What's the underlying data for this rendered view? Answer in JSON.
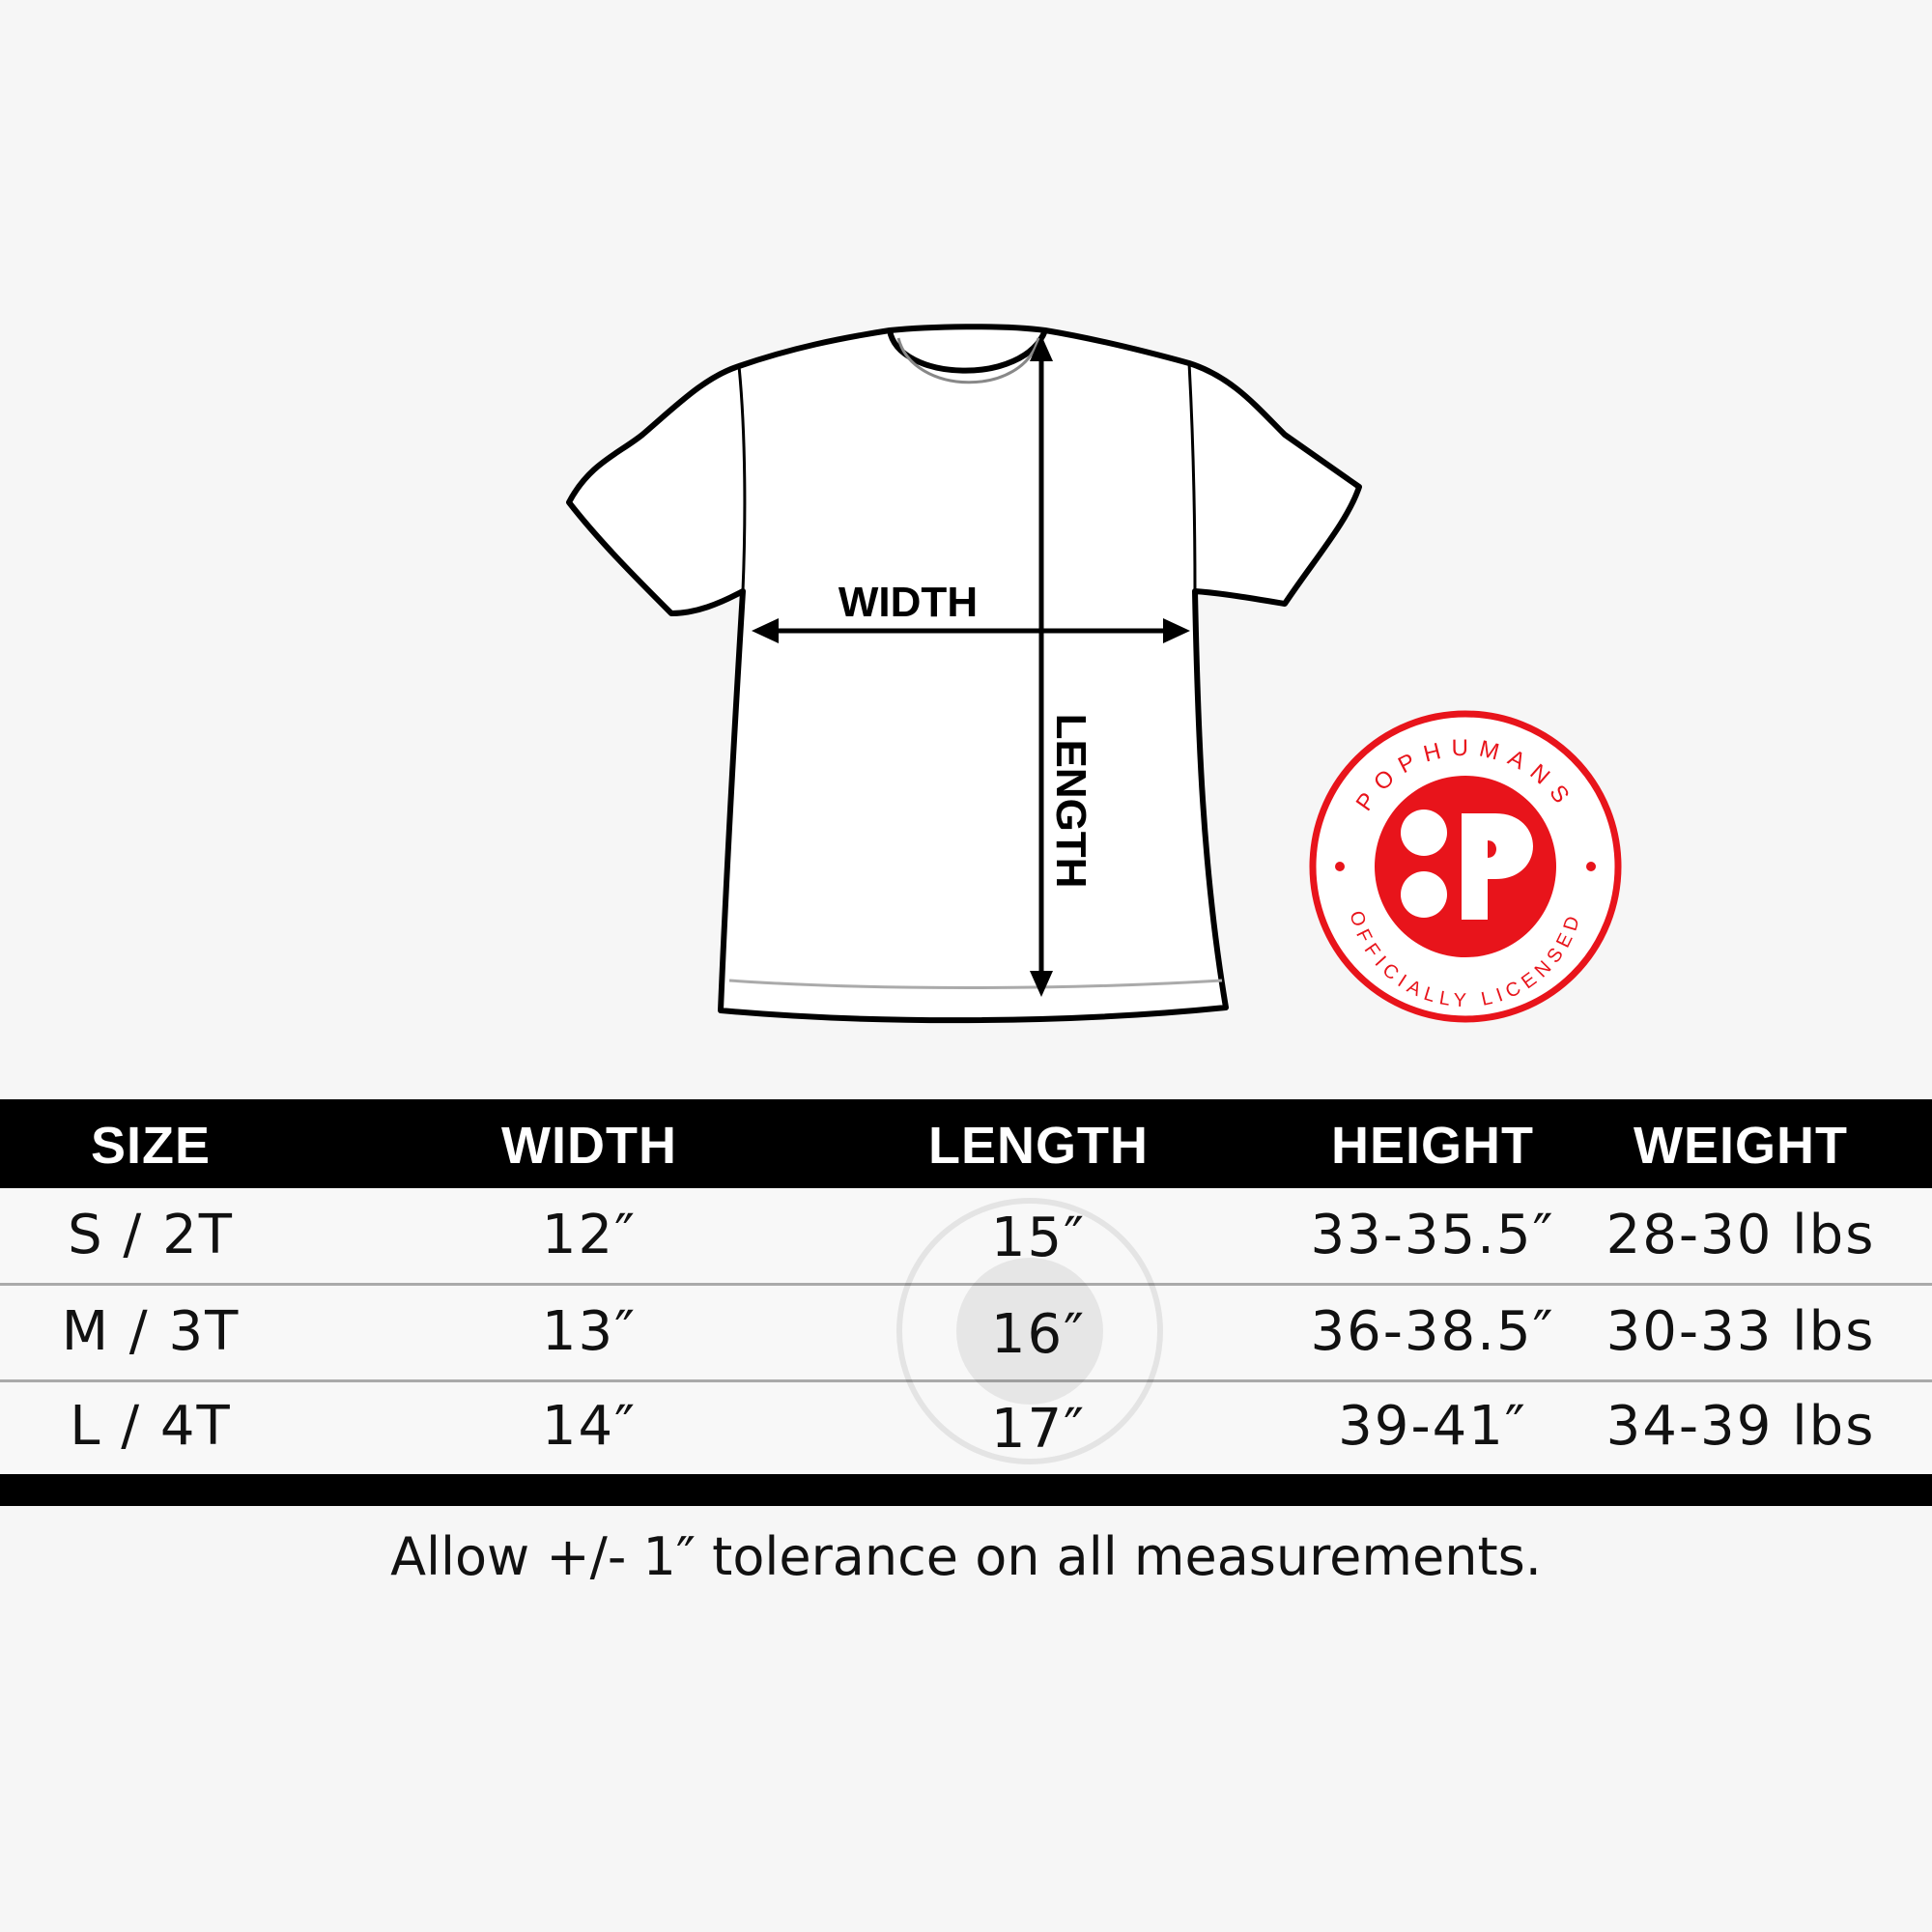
{
  "diagram": {
    "width_label": "WIDTH",
    "length_label": "LENGTH"
  },
  "logo": {
    "top_text": "POPHUMANS",
    "bottom_text": "OFFICIALLY LICENSED",
    "color": "#e8141b"
  },
  "table": {
    "headers": [
      "SIZE",
      "WIDTH",
      "LENGTH",
      "HEIGHT",
      "WEIGHT"
    ],
    "rows": [
      [
        "S / 2T",
        "12″",
        "15″",
        "33-35.5″",
        "28-30 lbs"
      ],
      [
        "M / 3T",
        "13″",
        "16″",
        "36-38.5″",
        "30-33 lbs"
      ],
      [
        "L / 4T",
        "14″",
        "17″",
        "39-41″",
        "34-39 lbs"
      ]
    ]
  },
  "note": "Allow +/- 1″ tolerance on all measurements."
}
